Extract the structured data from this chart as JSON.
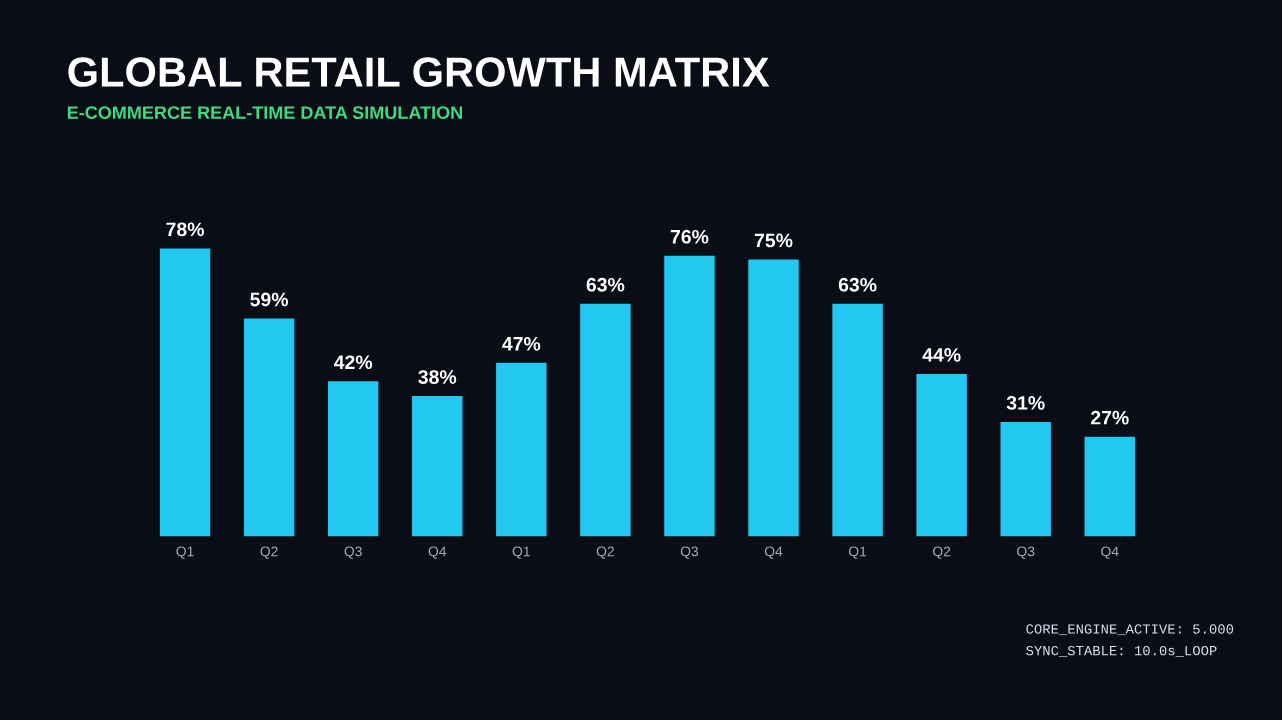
{
  "chart_data": {
    "type": "bar",
    "title": "GLOBAL RETAIL GROWTH MATRIX",
    "subtitle": "E-COMMERCE REAL-TIME DATA SIMULATION",
    "categories": [
      "Q1",
      "Q2",
      "Q3",
      "Q4",
      "Q1",
      "Q2",
      "Q3",
      "Q4",
      "Q1",
      "Q2",
      "Q3",
      "Q4"
    ],
    "values": [
      78,
      59,
      42,
      38,
      47,
      63,
      76,
      75,
      63,
      44,
      31,
      27
    ],
    "value_labels": [
      "78%",
      "59%",
      "42%",
      "38%",
      "47%",
      "63%",
      "76%",
      "75%",
      "63%",
      "44%",
      "31%",
      "27%"
    ],
    "color": "#22c8f0",
    "annotations": [
      "CORE_ENGINE_ACTIVE: 5.000",
      "SYNC_STABLE: 10.0s_LOOP"
    ],
    "tick_labels": "x",
    "grid": false,
    "legend": false
  }
}
